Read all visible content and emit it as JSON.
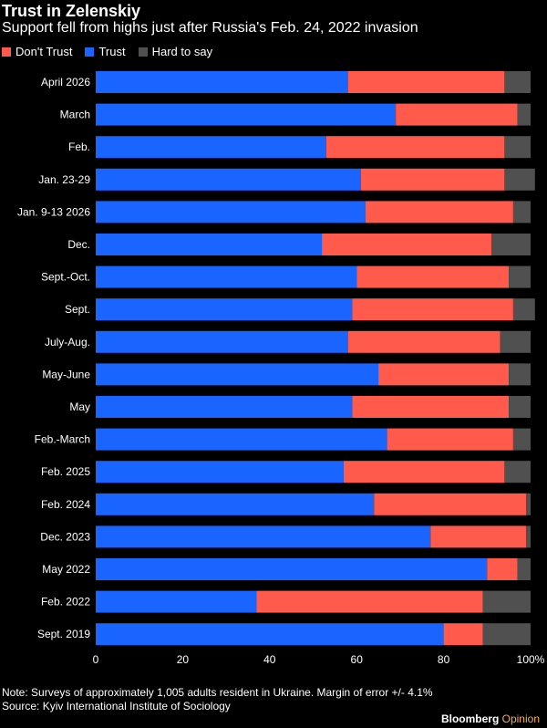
{
  "title": "Trust in Zelenskiy",
  "subtitle": "Support fell from highs just after Russia's Feb. 24, 2022 invasion",
  "note": "Note: Surveys of approximately 1,005 adults resident in Ukraine. Margin of error +/- 4.1%",
  "source": "Source: Kyiv International Institute of Sociology",
  "brand": {
    "name": "Bloomberg",
    "suffix": "Opinion"
  },
  "colors": {
    "trust": "#1a64ff",
    "dont_trust": "#ff5a4c",
    "hard_to_say": "#505050",
    "background": "#000000"
  },
  "chart_data": {
    "type": "bar",
    "orientation": "horizontal",
    "stacked": true,
    "categories": [
      "April 2026",
      "March",
      "Feb.",
      "Jan. 23-29",
      "Jan. 9-13 2026",
      "Dec.",
      "Sept.-Oct.",
      "Sept.",
      "July-Aug.",
      "May-June",
      "May",
      "Feb.-March",
      "Feb. 2025",
      "Feb. 2024",
      "Dec. 2023",
      "May 2022",
      "Feb. 2022",
      "Sept. 2019"
    ],
    "series": [
      {
        "name": "Trust",
        "color": "#1a64ff",
        "values": [
          58,
          69,
          53,
          61,
          62,
          52,
          60,
          59,
          58,
          65,
          59,
          67,
          57,
          64,
          77,
          90,
          37,
          80
        ]
      },
      {
        "name": "Don't Trust",
        "color": "#ff5a4c",
        "values": [
          36,
          28,
          41,
          33,
          34,
          39,
          35,
          37,
          35,
          30,
          36,
          29,
          37,
          35,
          22,
          7,
          52,
          9
        ]
      },
      {
        "name": "Hard to say",
        "color": "#505050",
        "values": [
          6,
          3,
          6,
          7,
          4,
          9,
          5,
          5,
          7,
          5,
          5,
          4,
          6,
          1,
          1,
          3,
          11,
          11
        ]
      }
    ],
    "legend_order": [
      "Don't Trust",
      "Trust",
      "Hard to say"
    ],
    "xlim": [
      0,
      100
    ],
    "xticks": [
      "0",
      "20",
      "40",
      "60",
      "80",
      "100%"
    ],
    "legend_position": "top-left",
    "grid": false
  }
}
